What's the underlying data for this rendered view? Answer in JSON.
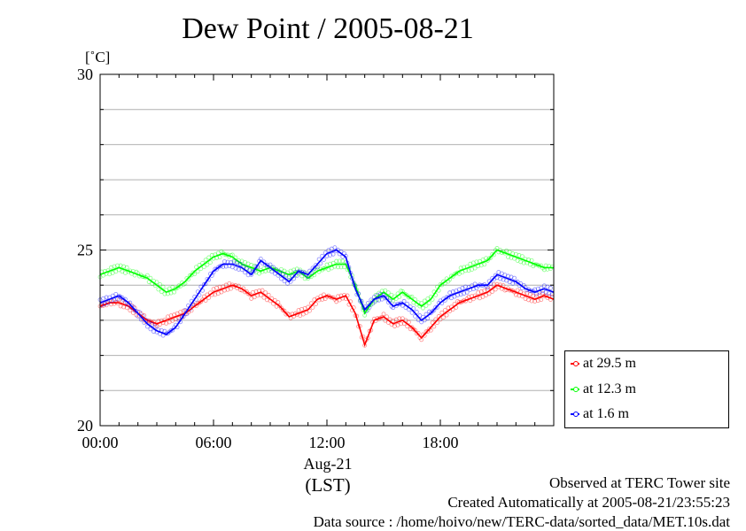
{
  "title": "Dew Point / 2005-08-21",
  "unit_label": "[˚C]",
  "footer": {
    "observed": "Observed at TERC Tower site",
    "created": "Created Automatically at 2005-08-21/23:55:23",
    "source": "Data source : /home/hoivo/new/TERC-data/sorted_data/MET.10s.dat"
  },
  "x_caption": {
    "date": "Aug-21",
    "zone": "(LST)"
  },
  "chart_data": {
    "type": "line",
    "title": "Dew Point / 2005-08-21",
    "ylabel": "[˚C]",
    "xlabel": "(LST)",
    "xlim": [
      0,
      24
    ],
    "ylim": [
      20,
      30
    ],
    "x_ticks": [
      {
        "value": 0,
        "label": "00:00"
      },
      {
        "value": 6,
        "label": "06:00"
      },
      {
        "value": 12,
        "label": "12:00"
      },
      {
        "value": 18,
        "label": "18:00"
      }
    ],
    "y_ticks": [
      {
        "value": 20,
        "label": "20"
      },
      {
        "value": 25,
        "label": "25"
      },
      {
        "value": 30,
        "label": "30"
      }
    ],
    "grid": true,
    "legend_position": "right-bottom",
    "x": [
      0,
      0.5,
      1,
      1.5,
      2,
      2.5,
      3,
      3.5,
      4,
      4.5,
      5,
      5.5,
      6,
      6.5,
      7,
      7.5,
      8,
      8.5,
      9,
      9.5,
      10,
      10.5,
      11,
      11.5,
      12,
      12.5,
      13,
      13.5,
      14,
      14.5,
      15,
      15.5,
      16,
      16.5,
      17,
      17.5,
      18,
      18.5,
      19,
      19.5,
      20,
      20.5,
      21,
      21.5,
      22,
      22.5,
      23,
      23.5,
      24
    ],
    "series": [
      {
        "name": "at 29.5 m",
        "color": "#ff0000",
        "values": [
          23.4,
          23.5,
          23.5,
          23.4,
          23.2,
          23.0,
          22.9,
          23.0,
          23.1,
          23.2,
          23.4,
          23.6,
          23.8,
          23.9,
          24.0,
          23.9,
          23.7,
          23.8,
          23.6,
          23.4,
          23.1,
          23.2,
          23.3,
          23.6,
          23.7,
          23.6,
          23.7,
          23.2,
          22.3,
          23.0,
          23.1,
          22.9,
          23.0,
          22.8,
          22.5,
          22.8,
          23.1,
          23.3,
          23.5,
          23.6,
          23.7,
          23.8,
          24.0,
          23.9,
          23.8,
          23.7,
          23.6,
          23.7,
          23.6
        ]
      },
      {
        "name": "at 12.3 m",
        "color": "#00ff00",
        "values": [
          24.3,
          24.4,
          24.5,
          24.4,
          24.3,
          24.2,
          24.0,
          23.8,
          23.9,
          24.1,
          24.4,
          24.6,
          24.8,
          24.9,
          24.8,
          24.6,
          24.5,
          24.4,
          24.5,
          24.4,
          24.3,
          24.4,
          24.2,
          24.4,
          24.5,
          24.6,
          24.6,
          24.0,
          23.2,
          23.6,
          23.8,
          23.6,
          23.8,
          23.6,
          23.4,
          23.6,
          24.0,
          24.2,
          24.4,
          24.5,
          24.6,
          24.7,
          25.0,
          24.9,
          24.8,
          24.7,
          24.6,
          24.5,
          24.5
        ]
      },
      {
        "name": "at 1.6 m",
        "color": "#0000ff",
        "values": [
          23.5,
          23.6,
          23.7,
          23.5,
          23.2,
          22.9,
          22.7,
          22.6,
          22.8,
          23.2,
          23.6,
          24.0,
          24.4,
          24.6,
          24.6,
          24.5,
          24.3,
          24.7,
          24.5,
          24.3,
          24.1,
          24.4,
          24.3,
          24.6,
          24.9,
          25.0,
          24.8,
          23.9,
          23.3,
          23.6,
          23.7,
          23.4,
          23.5,
          23.3,
          23.0,
          23.2,
          23.5,
          23.7,
          23.8,
          23.9,
          24.0,
          24.0,
          24.3,
          24.2,
          24.1,
          23.9,
          23.8,
          23.9,
          23.8
        ]
      }
    ]
  }
}
